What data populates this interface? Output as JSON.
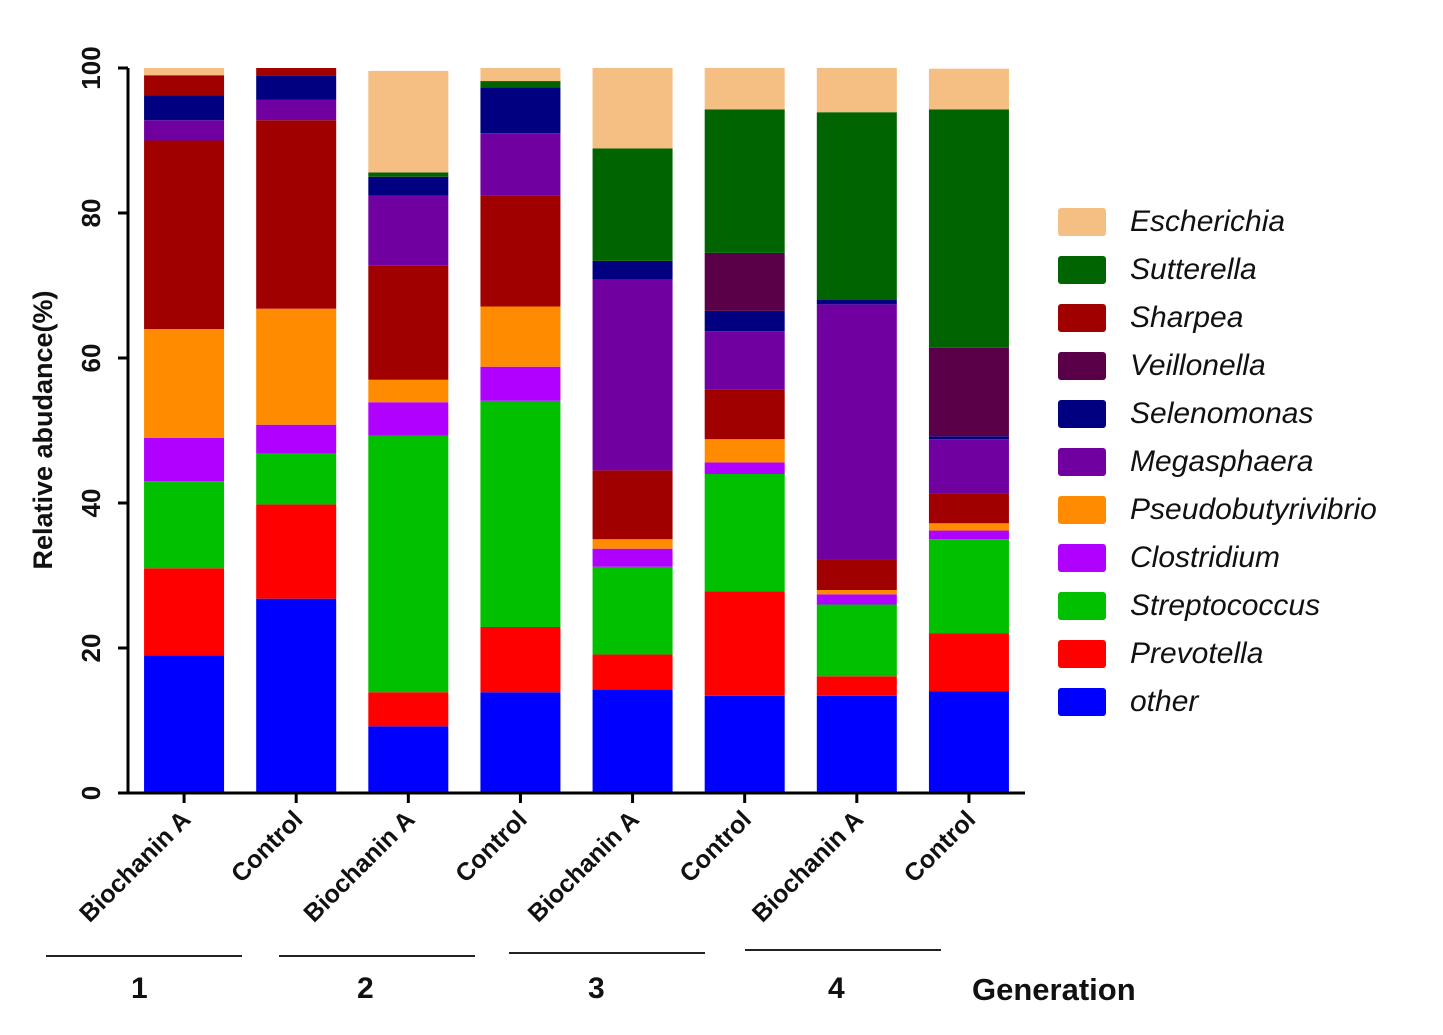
{
  "chart_data": {
    "type": "bar",
    "stacked": true,
    "title": "",
    "xlabel": "",
    "ylabel": "Relative abudance(%)",
    "ylim": [
      0,
      100
    ],
    "yticks": [
      0,
      20,
      40,
      60,
      80,
      100
    ],
    "categories": [
      "Biochanin A",
      "Control",
      "Biochanin A",
      "Control",
      "Biochanin A",
      "Control",
      "Biochanin A",
      "Control"
    ],
    "series": [
      {
        "name": "other",
        "color": "#0000FF",
        "values": [
          19,
          26.8,
          9.2,
          13.9,
          14.3,
          13.4,
          13.4,
          14.0
        ]
      },
      {
        "name": "Prevotella",
        "color": "#FF0000",
        "values": [
          12,
          13,
          4.7,
          9,
          4.8,
          14.4,
          2.7,
          8
        ]
      },
      {
        "name": "Streptococcus",
        "color": "#00C000",
        "values": [
          12,
          7,
          35.4,
          31.2,
          12.1,
          16.2,
          9.9,
          13
        ]
      },
      {
        "name": "Clostridium",
        "color": "#B000FF",
        "values": [
          6,
          4,
          4.6,
          4.7,
          2.5,
          1.6,
          1.4,
          1.2
        ]
      },
      {
        "name": "Pseudobutyrivibrio",
        "color": "#FF8C00",
        "values": [
          15,
          16,
          3.1,
          8.3,
          1.3,
          3.2,
          0.6,
          1.0
        ]
      },
      {
        "name": "Sharpea",
        "color": "#A00000",
        "values": [
          26,
          26,
          15.8,
          15.3,
          9.5,
          6.8,
          4.2,
          4.1
        ]
      },
      {
        "name": "Megasphaera",
        "color": "#7000A0",
        "values": [
          2.8,
          2.8,
          9.6,
          8.6,
          26.3,
          8.1,
          35.2,
          7.5
        ]
      },
      {
        "name": "Selenomonas",
        "color": "#000080",
        "values": [
          3.4,
          3.4,
          2.6,
          6.3,
          2.6,
          2.8,
          0.6,
          0.4
        ]
      },
      {
        "name": "Veillonella",
        "color": "#5A0048",
        "values": [
          0,
          0,
          0,
          0,
          0,
          8,
          0,
          12.2
        ]
      },
      {
        "name": "Sutterella",
        "color": "#006400",
        "values": [
          0,
          0,
          0.6,
          0.9,
          15.5,
          19.8,
          25.9,
          32.9
        ]
      },
      {
        "name": "Sharpea (top)",
        "color": "#A00000",
        "values": [
          2.8,
          1.0,
          0,
          0,
          0,
          0,
          0,
          0
        ]
      },
      {
        "name": "Escherichia",
        "color": "#F5BE82",
        "values": [
          1.0,
          0,
          14.0,
          1.8,
          11.1,
          5.7,
          6.1,
          5.6
        ]
      }
    ],
    "legend_position": "right",
    "legend": [
      {
        "name": "Escherichia",
        "color": "#F5BE82"
      },
      {
        "name": "Sutterella",
        "color": "#006400"
      },
      {
        "name": "Sharpea",
        "color": "#A00000"
      },
      {
        "name": "Veillonella",
        "color": "#5A0048"
      },
      {
        "name": "Selenomonas",
        "color": "#000080"
      },
      {
        "name": "Megasphaera",
        "color": "#7000A0"
      },
      {
        "name": "Pseudobutyrivibrio",
        "color": "#FF8C00"
      },
      {
        "name": "Clostridium",
        "color": "#B000FF"
      },
      {
        "name": "Streptococcus",
        "color": "#00C000"
      },
      {
        "name": "Prevotella",
        "color": "#FF0000"
      },
      {
        "name": "other",
        "color": "#0000FF"
      }
    ],
    "groups": [
      {
        "label": "1"
      },
      {
        "label": "2"
      },
      {
        "label": "3"
      },
      {
        "label": "4"
      }
    ],
    "group_title": "Generation"
  }
}
